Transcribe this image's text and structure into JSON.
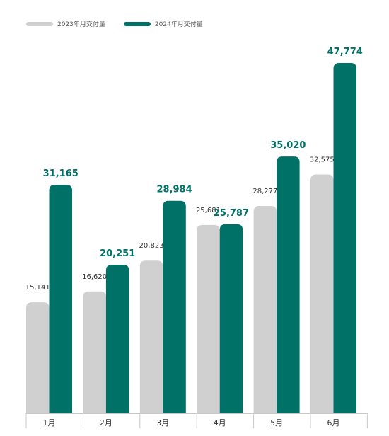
{
  "chart_data": {
    "type": "bar",
    "categories": [
      "1月",
      "2月",
      "3月",
      "4月",
      "5月",
      "6月"
    ],
    "series": [
      {
        "name": "2023年月交付量",
        "values": [
          15141,
          16620,
          20823,
          25681,
          28277,
          32575
        ],
        "labels": [
          "15,141",
          "16,620",
          "20,823",
          "25,681",
          "28,277",
          "32,575"
        ],
        "color": "#d0d0d0"
      },
      {
        "name": "2024年月交付量",
        "values": [
          31165,
          20251,
          28984,
          25787,
          35020,
          47774
        ],
        "labels": [
          "31,165",
          "20,251",
          "28,984",
          "25,787",
          "35,020",
          "47,774"
        ],
        "color": "#007166"
      }
    ],
    "title": "",
    "xlabel": "",
    "ylabel": "",
    "ylim": [
      0,
      47774
    ],
    "grid": false,
    "legend_position": "top-left"
  }
}
